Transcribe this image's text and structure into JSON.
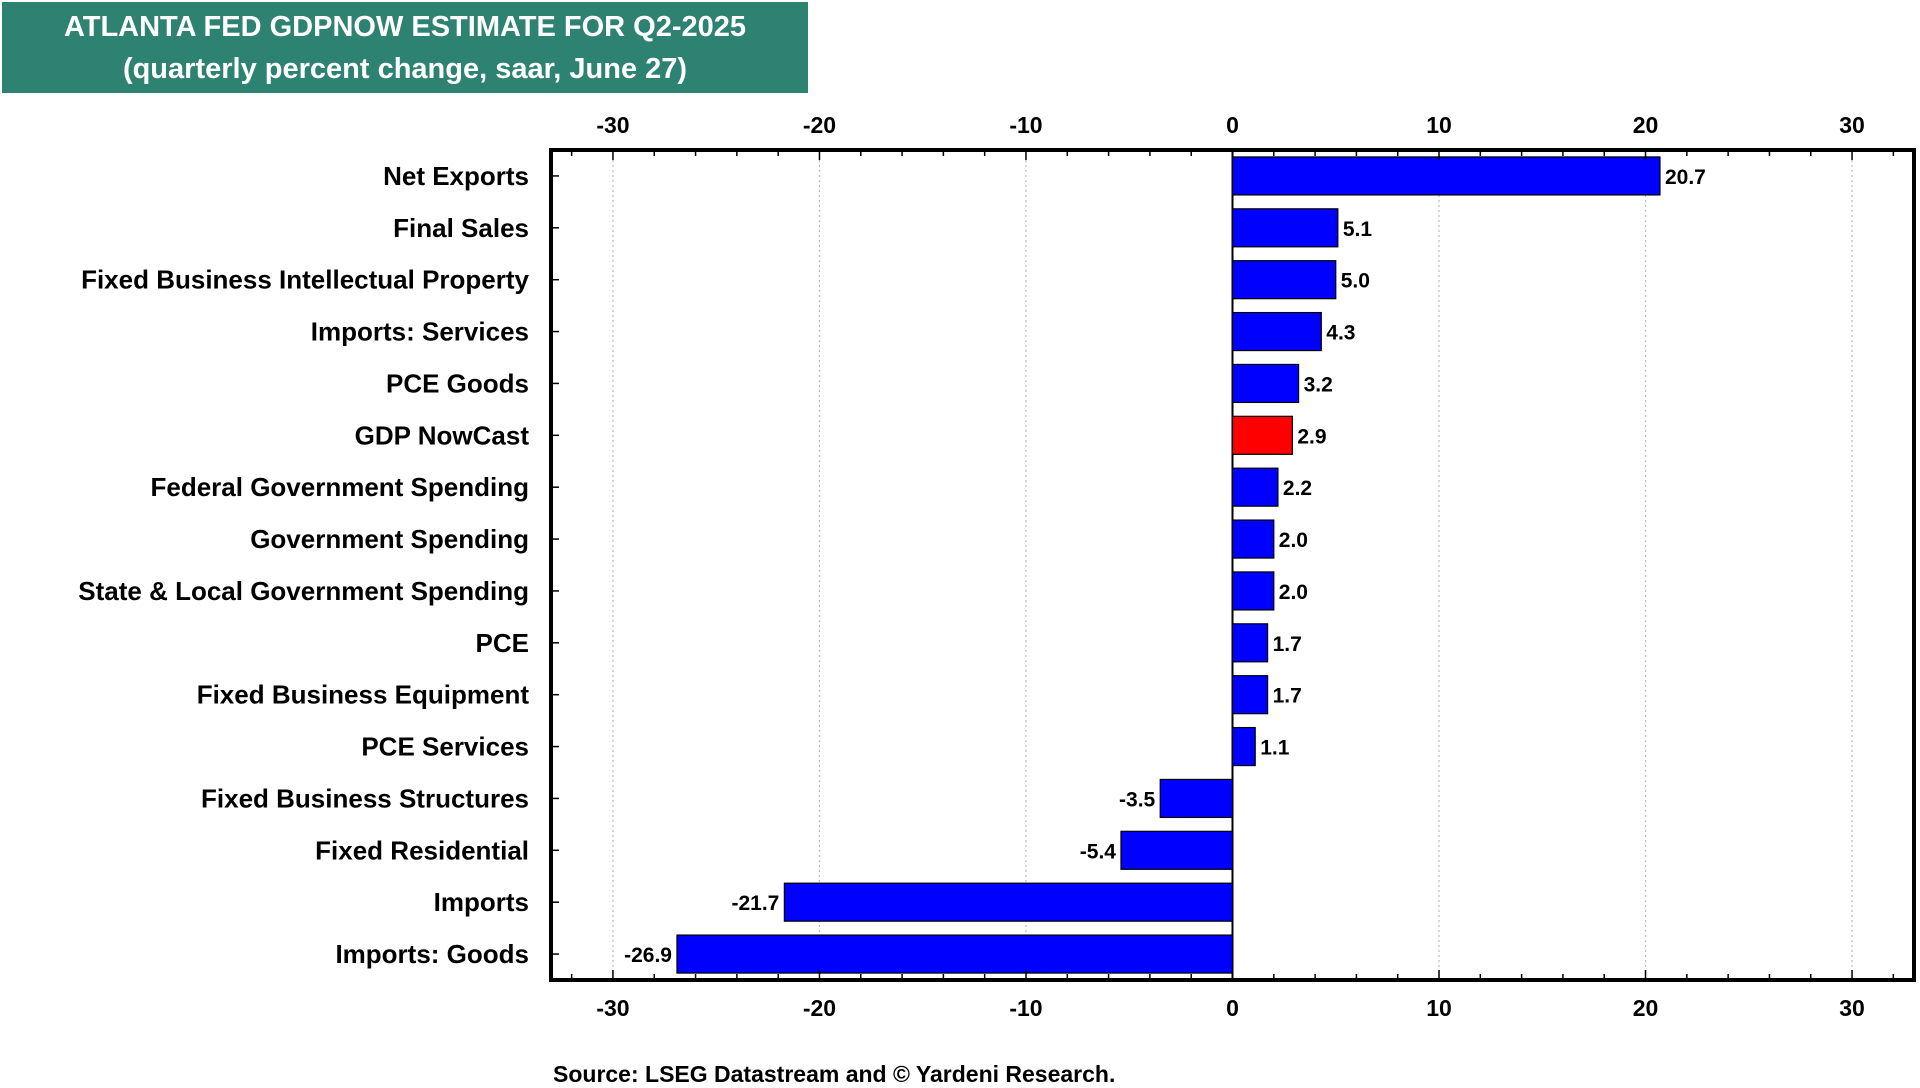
{
  "header": {
    "title": "ATLANTA FED GDPNOW ESTIMATE FOR Q2-2025",
    "subtitle": "(quarterly percent change, saar, June 27)"
  },
  "source": "Source: LSEG Datastream and © Yardeni Research.",
  "colors": {
    "header_bg": "#2e8272",
    "bar": "#0000ff",
    "highlight_bar": "#ff0000",
    "grid": "#bbbbbb"
  },
  "chart_data": {
    "type": "bar",
    "orientation": "horizontal",
    "title": "ATLANTA FED GDPNOW ESTIMATE FOR Q2-2025",
    "subtitle": "(quarterly percent change, saar, June 27)",
    "categories": [
      "Net Exports",
      "Final Sales",
      "Fixed Business Intellectual Property",
      "Imports: Services",
      "PCE Goods",
      "GDP NowCast",
      "Federal Government Spending",
      "Government Spending",
      "State & Local Government Spending",
      "PCE",
      "Fixed Business Equipment",
      "PCE Services",
      "Fixed Business Structures",
      "Fixed Residential",
      "Imports",
      "Imports: Goods"
    ],
    "values": [
      20.7,
      5.1,
      5.0,
      4.3,
      3.2,
      2.9,
      2.2,
      2.0,
      2.0,
      1.7,
      1.7,
      1.1,
      -3.5,
      -5.4,
      -21.7,
      -26.9
    ],
    "value_labels": [
      "20.7",
      "5.1",
      "5.0",
      "4.3",
      "3.2",
      "2.9",
      "2.2",
      "2.0",
      "2.0",
      "1.7",
      "1.7",
      "1.1",
      "-3.5",
      "-5.4",
      "-21.7",
      "-26.9"
    ],
    "highlight_category": "GDP NowCast",
    "xlim": [
      -33,
      33
    ],
    "xticks": [
      -30,
      -20,
      -10,
      0,
      10,
      20,
      30
    ],
    "xtick_labels": [
      "-30",
      "-20",
      "-10",
      "0",
      "10",
      "20",
      "30"
    ],
    "x_axis_top_and_bottom": true,
    "grid": "vertical dotted",
    "legend": "none"
  }
}
